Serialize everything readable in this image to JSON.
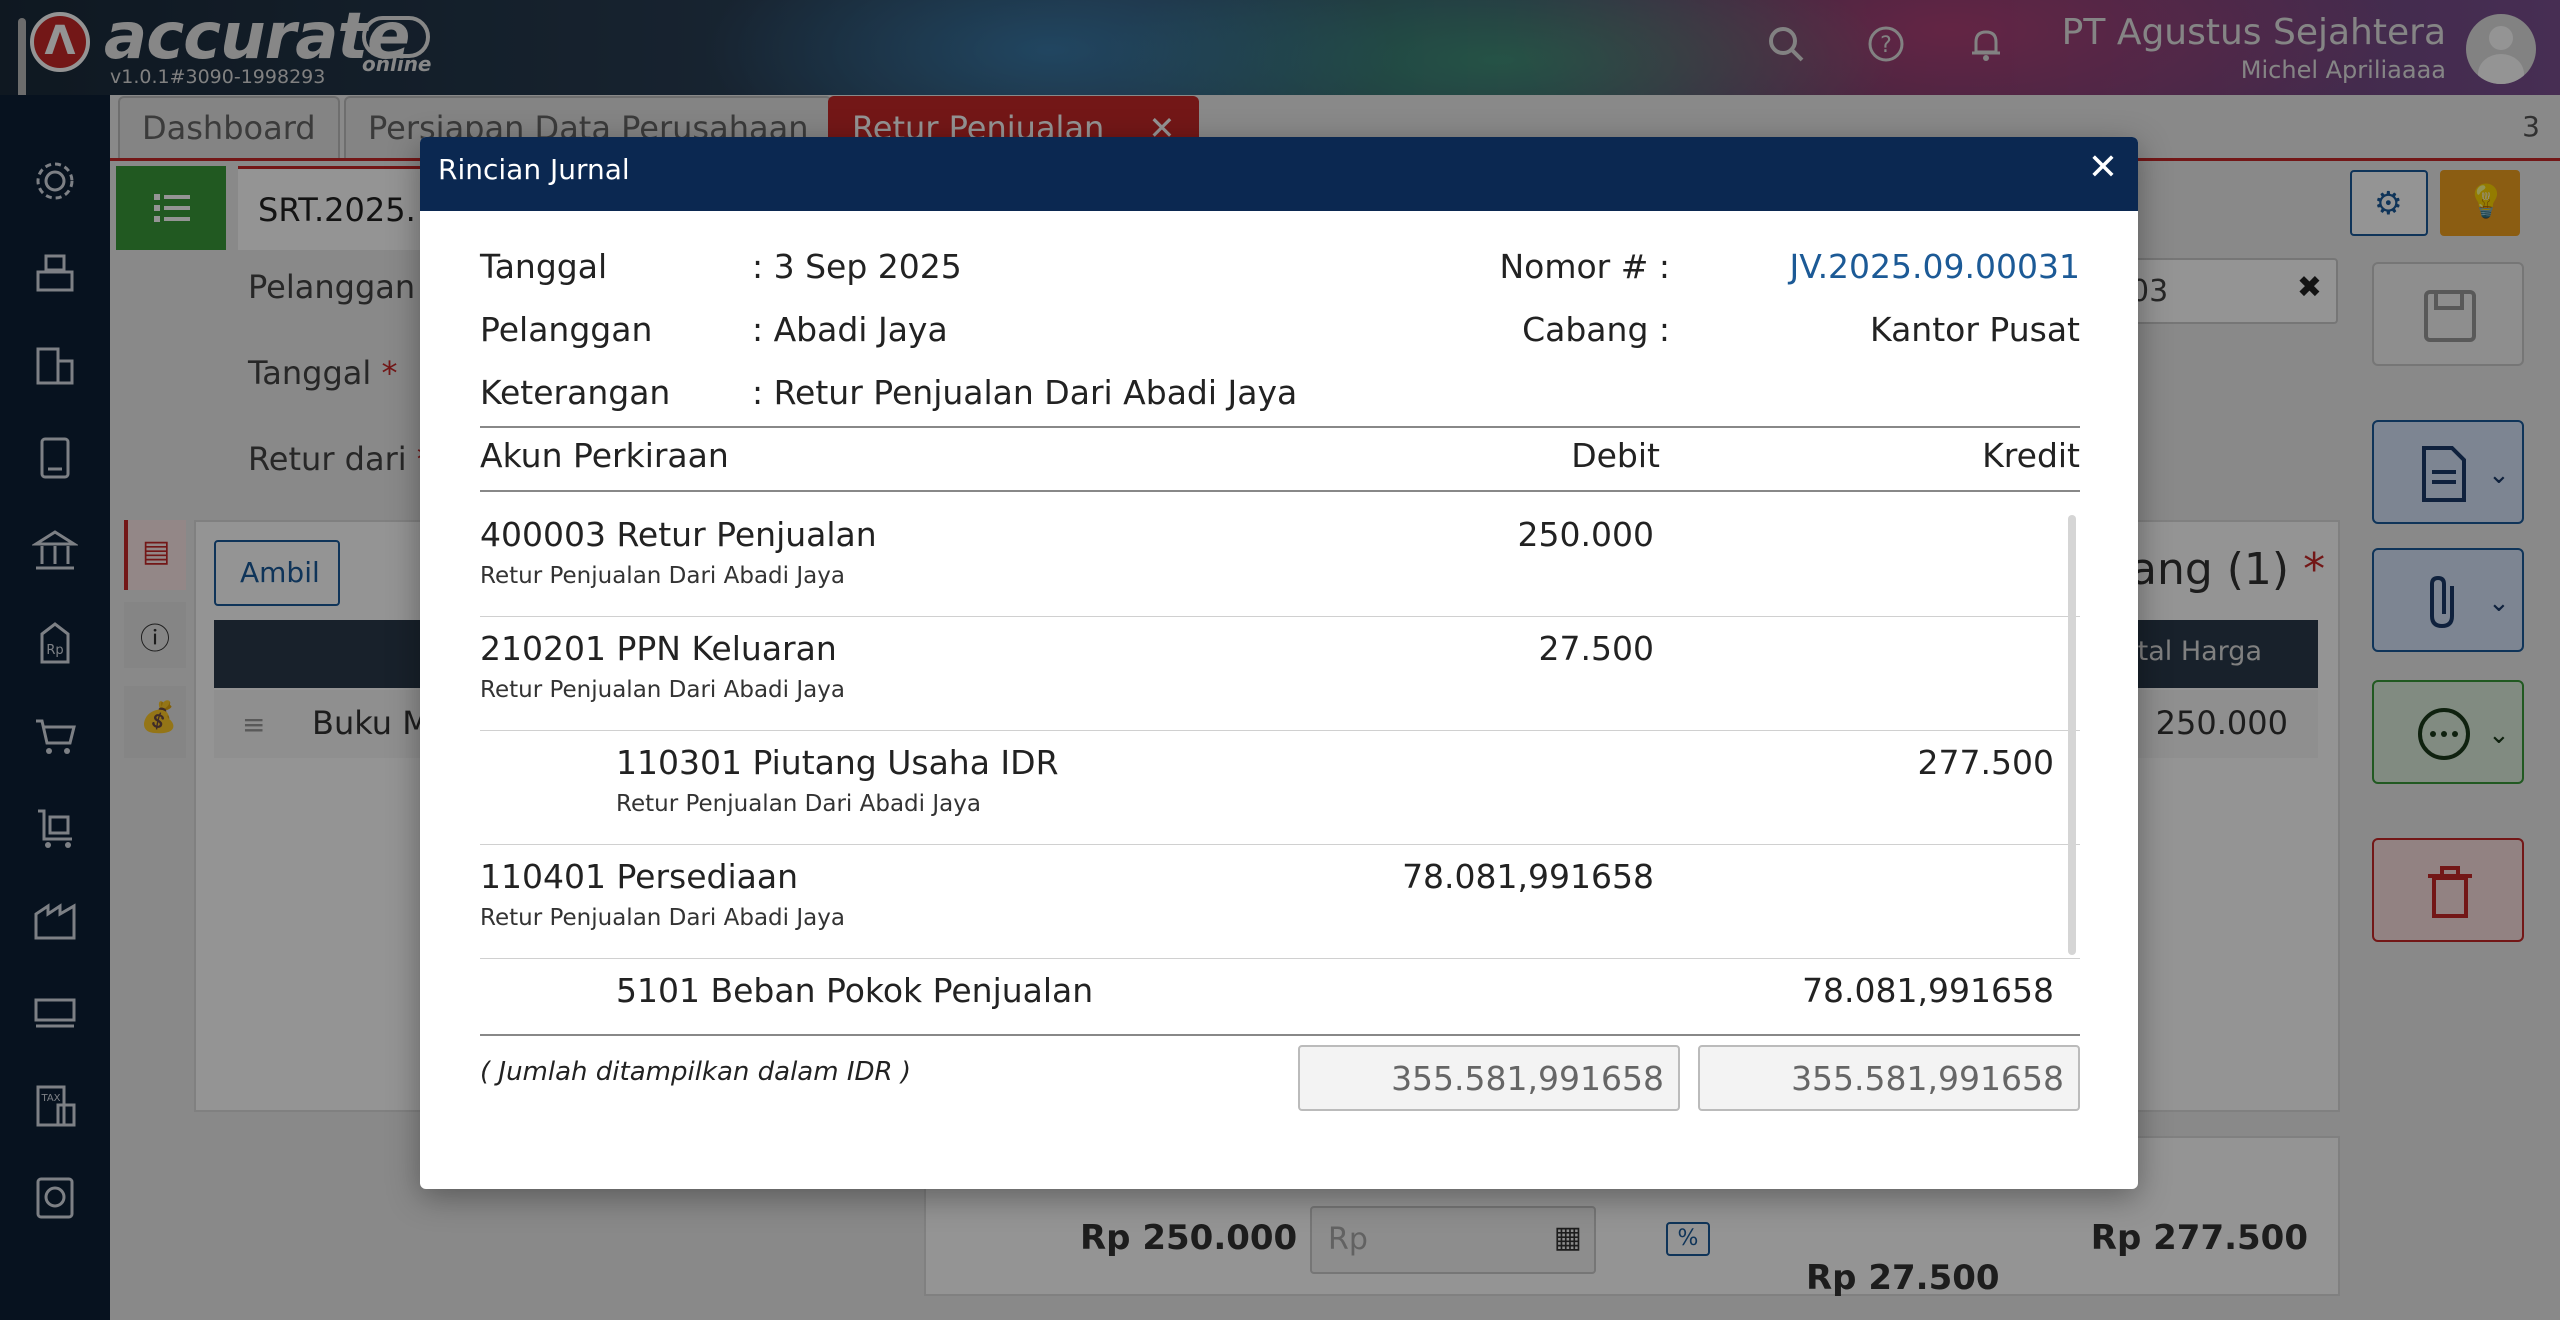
{
  "app": {
    "logo_text": "accurate",
    "logo_sub": "online",
    "version": "v1.0.1#3090-1998293",
    "company": "PT Agustus Sejahtera",
    "user": "Michel Apriliaaaa",
    "icons": [
      "search-icon",
      "help-icon",
      "bell-icon",
      "avatar"
    ]
  },
  "sidebar": {
    "icons": [
      "gear-icon",
      "cash-register-icon",
      "building-icon",
      "ledger-icon",
      "bank-icon",
      "price-tag-icon",
      "cart-icon",
      "trolley-icon",
      "warehouse-icon",
      "factory-icon",
      "tax-icon",
      "report-icon"
    ]
  },
  "tabs": [
    {
      "label": "Dashboard"
    },
    {
      "label": "Persiapan Data Perusahaan"
    },
    {
      "label": "Retur Penjualan",
      "close": "✕"
    }
  ],
  "tabs_count": "3",
  "form": {
    "doc_number": "SRT.2025.",
    "pelanggan_label": "Pelanggan",
    "tanggal_label": "Tanggal",
    "retur_label": "Retur dari",
    "required_mark": "*",
    "ambil_button": "Ambil",
    "field_value_partial": "03",
    "barang_heading": "ang (1)",
    "total_harga_header": "otal Harga",
    "item_name": "Buku M",
    "item_total": "250.000",
    "summary_subtotal": "Rp 250.000",
    "summary_rp_placeholder": "Rp",
    "summary_percent": "%",
    "summary_tax": "Rp 27.500",
    "summary_total": "Rp 277.500"
  },
  "modal": {
    "title": "Rincian Jurnal",
    "close": "✕",
    "tanggal_label": "Tanggal",
    "tanggal_value": ": 3 Sep 2025",
    "pelanggan_label": "Pelanggan",
    "pelanggan_value": ": Abadi Jaya",
    "keterangan_label": "Keterangan",
    "keterangan_value": ": Retur Penjualan Dari Abadi Jaya",
    "nomor_label": "Nomor # :",
    "nomor_value": "JV.2025.09.00031",
    "cabang_label": "Cabang :",
    "cabang_value": "Kantor Pusat",
    "col_account": "Akun Perkiraan",
    "col_debit": "Debit",
    "col_credit": "Kredit",
    "rows": [
      {
        "account": "400003 Retur Penjualan",
        "note": "Retur Penjualan Dari Abadi Jaya",
        "debit": "250.000",
        "credit": ""
      },
      {
        "account": "210201 PPN Keluaran",
        "note": "Retur Penjualan Dari Abadi Jaya",
        "debit": "27.500",
        "credit": ""
      },
      {
        "account": "110301 Piutang Usaha IDR",
        "note": "Retur Penjualan Dari Abadi Jaya",
        "debit": "",
        "credit": "277.500"
      },
      {
        "account": "110401 Persediaan",
        "note": "Retur Penjualan Dari Abadi Jaya",
        "debit": "78.081,991658",
        "credit": ""
      },
      {
        "account": "5101 Beban Pokok Penjualan",
        "note": "",
        "debit": "",
        "credit": "78.081,991658"
      }
    ],
    "footnote": "( Jumlah ditampilkan dalam IDR )",
    "total_debit": "355.581,991658",
    "total_credit": "355.581,991658"
  },
  "colors": {
    "modal_header": "#0b2851",
    "brand_red": "#c62828",
    "sidebar": "#0d1f36",
    "link_blue": "#1c5a96"
  }
}
